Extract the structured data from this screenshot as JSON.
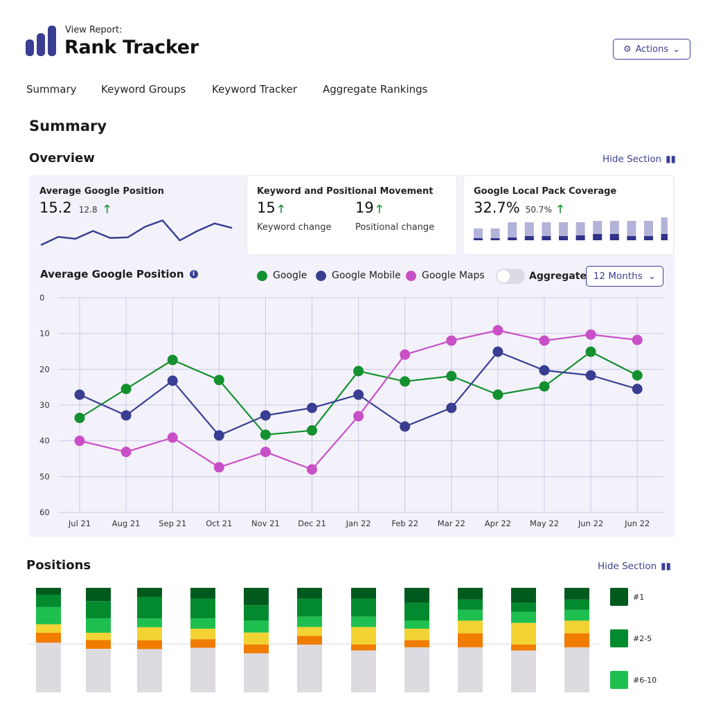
{
  "header": {
    "pre_title": "View Report:",
    "title": "Rank Tracker",
    "actions_label": "Actions",
    "logo_icon": "bar-chart-logo"
  },
  "nav": [
    "Summary",
    "Keyword Groups",
    "Keyword Tracker",
    "Aggregate Rankings"
  ],
  "page_title": "Summary",
  "overview": {
    "title": "Overview",
    "hide_label": "Hide Section",
    "cards": [
      {
        "title": "Average Google Position",
        "value": "15.2",
        "sub": "12.8",
        "spark": [
          0,
          35,
          27,
          60,
          30,
          33,
          78,
          105,
          20,
          60,
          92,
          73
        ]
      },
      {
        "title": "Keyword and Positional Movement",
        "kw_value": "15",
        "kw_label": "Keyword change",
        "pos_value": "19",
        "pos_label": "Positional change"
      },
      {
        "title": "Google Local Pack Coverage",
        "value": "32.7%",
        "sub": "50.7%",
        "bars_total": [
          17,
          17,
          26,
          26,
          26,
          26,
          26,
          28,
          28,
          28,
          28,
          34
        ],
        "bars_dark": [
          3,
          3,
          4,
          6,
          6,
          6,
          7,
          9,
          9,
          6,
          6,
          9
        ]
      }
    ]
  },
  "chart_data": {
    "type": "line",
    "title": "Average Google Position",
    "categories": [
      "Jul 21",
      "Aug 21",
      "Sep 21",
      "Oct 21",
      "Nov 21",
      "Dec 21",
      "Jan 22",
      "Feb 22",
      "Mar 22",
      "Apr 22",
      "May 22",
      "Jun 22",
      "Jun 22"
    ],
    "ylim": [
      0,
      60
    ],
    "yticks": [
      0,
      10,
      20,
      30,
      40,
      50,
      60
    ],
    "y_inverted": true,
    "grid": true,
    "series": [
      {
        "name": "Google",
        "color": "#13902f",
        "values": [
          33.6,
          25.5,
          17.4,
          23,
          38.3,
          37.1,
          20.5,
          23.4,
          21.9,
          27.1,
          24.8,
          15.1,
          21.7
        ]
      },
      {
        "name": "Google Mobile",
        "color": "#393e92",
        "values": [
          27.1,
          32.9,
          23.2,
          38.5,
          32.9,
          30.8,
          27.1,
          36,
          30.8,
          15.1,
          20.3,
          21.7,
          25.5
        ]
      },
      {
        "name": "Google Maps",
        "color": "#c94fc7",
        "values": [
          40,
          43.1,
          39.1,
          47.4,
          43.1,
          48,
          33.1,
          15.9,
          12,
          9.1,
          12,
          10.3,
          11.8
        ]
      }
    ],
    "aggregate_label": "Aggregate",
    "aggregate_on": false,
    "range_label": "12 Months"
  },
  "positions": {
    "title": "Positions",
    "hide_label": "Hide Section",
    "legend": [
      {
        "label": "#1",
        "color": "#005a1e"
      },
      {
        "label": "#2-5",
        "color": "#038a2e"
      },
      {
        "label": "#6-10",
        "color": "#1fbf4f"
      }
    ],
    "segment_colors": [
      "#005a1e",
      "#038a2e",
      "#1fbf4f",
      "#f2d333",
      "#f07c00",
      "#dddbe0"
    ],
    "bars": [
      [
        6.6,
        11.6,
        16.7,
        8.1,
        9.5,
        47.5
      ],
      [
        12.7,
        16.5,
        13.8,
        7,
        8.4,
        41.6
      ],
      [
        8.6,
        20.7,
        8.4,
        12.5,
        8.4,
        41.4
      ],
      [
        10.5,
        18.7,
        9.9,
        10.1,
        8.1,
        42.7
      ],
      [
        16.7,
        14.7,
        11.4,
        11.4,
        8.4,
        37.4
      ],
      [
        10.5,
        17.1,
        9.9,
        8.4,
        8.4,
        45.7
      ],
      [
        10.5,
        17.1,
        9.9,
        16.7,
        5.7,
        40.1
      ],
      [
        14.3,
        17.1,
        7.7,
        11,
        6.8,
        43.1
      ],
      [
        11.2,
        9.9,
        10.3,
        12.1,
        13.4,
        43.1
      ],
      [
        14.3,
        8.8,
        10.5,
        20.7,
        5.7,
        40
      ],
      [
        11.2,
        9.9,
        10.3,
        12.1,
        13.4,
        43.1
      ]
    ]
  }
}
